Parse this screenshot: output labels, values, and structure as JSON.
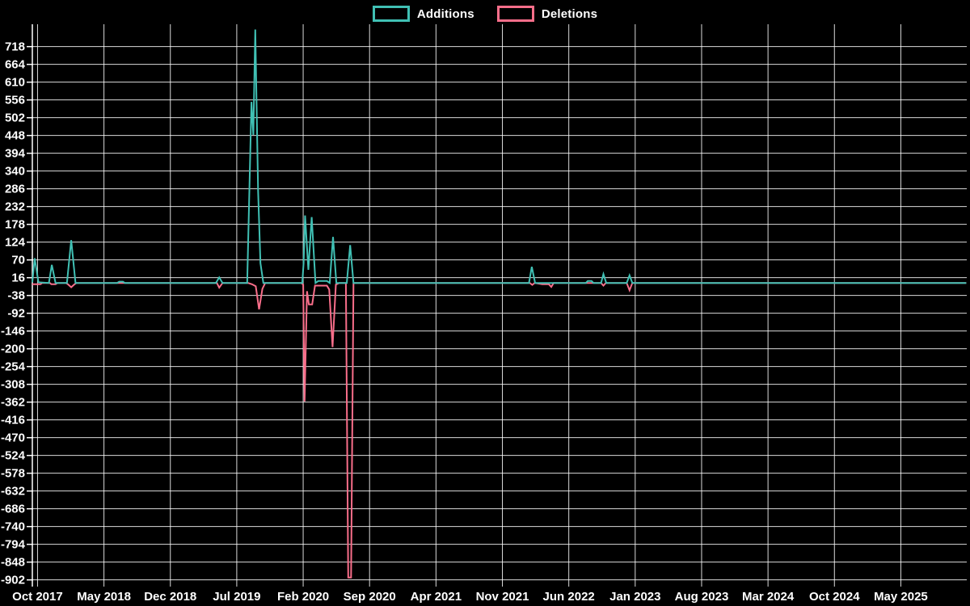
{
  "chart_data": {
    "type": "line",
    "title": "",
    "background_color": "#000000",
    "text_color": "#ffffff",
    "grid": {
      "show": true,
      "color": "#ffffff"
    },
    "legend_position": "top-center",
    "x_axis": {
      "unit": "months since Oct 2017",
      "ticks": [
        {
          "label": "Oct 2017",
          "m": 0
        },
        {
          "label": "May 2018",
          "m": 7
        },
        {
          "label": "Dec 2018",
          "m": 14
        },
        {
          "label": "Jul 2019",
          "m": 21
        },
        {
          "label": "Feb 2020",
          "m": 28
        },
        {
          "label": "Sep 2020",
          "m": 35
        },
        {
          "label": "Apr 2021",
          "m": 42
        },
        {
          "label": "Nov 2021",
          "m": 49
        },
        {
          "label": "Jun 2022",
          "m": 56
        },
        {
          "label": "Jan 2023",
          "m": 63
        },
        {
          "label": "Aug 2023",
          "m": 70
        },
        {
          "label": "Mar 2024",
          "m": 77
        },
        {
          "label": "Oct 2024",
          "m": 84
        },
        {
          "label": "May 2025",
          "m": 91
        }
      ]
    },
    "y_axis": {
      "ticks": [
        718,
        664,
        610,
        556,
        502,
        448,
        394,
        340,
        286,
        232,
        178,
        124,
        70,
        16,
        -38,
        -92,
        -146,
        -200,
        -254,
        -308,
        -362,
        -416,
        -470,
        -524,
        -578,
        -632,
        -686,
        -740,
        -794,
        -848,
        -902
      ],
      "range": [
        -922,
        786
      ]
    },
    "series": [
      {
        "name": "Additions",
        "color": "#40c0b4",
        "points": [
          [
            -0.55,
            2
          ],
          [
            -0.3,
            75
          ],
          [
            0.1,
            2
          ],
          [
            1.2,
            0
          ],
          [
            1.5,
            55
          ],
          [
            1.9,
            0
          ],
          [
            3.1,
            0
          ],
          [
            3.55,
            130
          ],
          [
            4,
            0
          ],
          [
            8.4,
            0
          ],
          [
            8.6,
            4
          ],
          [
            9,
            4
          ],
          [
            9.2,
            0
          ],
          [
            18.8,
            0
          ],
          [
            19.15,
            17
          ],
          [
            19.5,
            0
          ],
          [
            22.1,
            0
          ],
          [
            22.55,
            550
          ],
          [
            22.75,
            450
          ],
          [
            22.95,
            770
          ],
          [
            23.25,
            280
          ],
          [
            23.5,
            60
          ],
          [
            23.8,
            0
          ],
          [
            27.9,
            0
          ],
          [
            28.05,
            60
          ],
          [
            28.2,
            205
          ],
          [
            28.55,
            40
          ],
          [
            28.9,
            200
          ],
          [
            29.3,
            0
          ],
          [
            29.6,
            6
          ],
          [
            30.5,
            6
          ],
          [
            30.8,
            0
          ],
          [
            31.15,
            140
          ],
          [
            31.5,
            0
          ],
          [
            32.6,
            0
          ],
          [
            32.95,
            115
          ],
          [
            33.3,
            0
          ],
          [
            51.8,
            0
          ],
          [
            52.1,
            49
          ],
          [
            52.45,
            0
          ],
          [
            57.8,
            0
          ],
          [
            58,
            6
          ],
          [
            58.4,
            6
          ],
          [
            58.6,
            0
          ],
          [
            59.4,
            0
          ],
          [
            59.65,
            27
          ],
          [
            59.95,
            0
          ],
          [
            62.1,
            0
          ],
          [
            62.4,
            23
          ],
          [
            62.7,
            0
          ],
          [
            97.9,
            0
          ]
        ]
      },
      {
        "name": "Deletions",
        "color": "#f96e8a",
        "points": [
          [
            -0.55,
            -4
          ],
          [
            0.3,
            -4
          ],
          [
            0.5,
            0
          ],
          [
            1.3,
            0
          ],
          [
            1.45,
            -4
          ],
          [
            1.9,
            -4
          ],
          [
            2.1,
            0
          ],
          [
            3,
            0
          ],
          [
            3.2,
            -4
          ],
          [
            3.55,
            -13
          ],
          [
            3.9,
            -4
          ],
          [
            4.1,
            0
          ],
          [
            18.9,
            0
          ],
          [
            19.15,
            -14
          ],
          [
            19.5,
            0
          ],
          [
            22.2,
            0
          ],
          [
            22.6,
            -4
          ],
          [
            23,
            -10
          ],
          [
            23.35,
            -80
          ],
          [
            23.7,
            -18
          ],
          [
            24,
            0
          ],
          [
            27.8,
            0
          ],
          [
            28,
            -5
          ],
          [
            28.15,
            -360
          ],
          [
            28.4,
            -25
          ],
          [
            28.6,
            -65
          ],
          [
            28.95,
            -65
          ],
          [
            29.25,
            -8
          ],
          [
            30.5,
            -8
          ],
          [
            30.75,
            -20
          ],
          [
            31.1,
            -195
          ],
          [
            31.45,
            -5
          ],
          [
            31.8,
            0
          ],
          [
            32.5,
            0
          ],
          [
            32.75,
            -895
          ],
          [
            33.05,
            -895
          ],
          [
            33.3,
            0
          ],
          [
            51.9,
            0
          ],
          [
            52.15,
            -6
          ],
          [
            52.4,
            0
          ],
          [
            53.2,
            -4
          ],
          [
            53.9,
            -4
          ],
          [
            54.15,
            -12
          ],
          [
            54.4,
            0
          ],
          [
            59.4,
            0
          ],
          [
            59.65,
            -8
          ],
          [
            59.9,
            0
          ],
          [
            62.1,
            0
          ],
          [
            62.4,
            -22
          ],
          [
            62.7,
            0
          ],
          [
            97.9,
            0
          ]
        ]
      }
    ]
  }
}
